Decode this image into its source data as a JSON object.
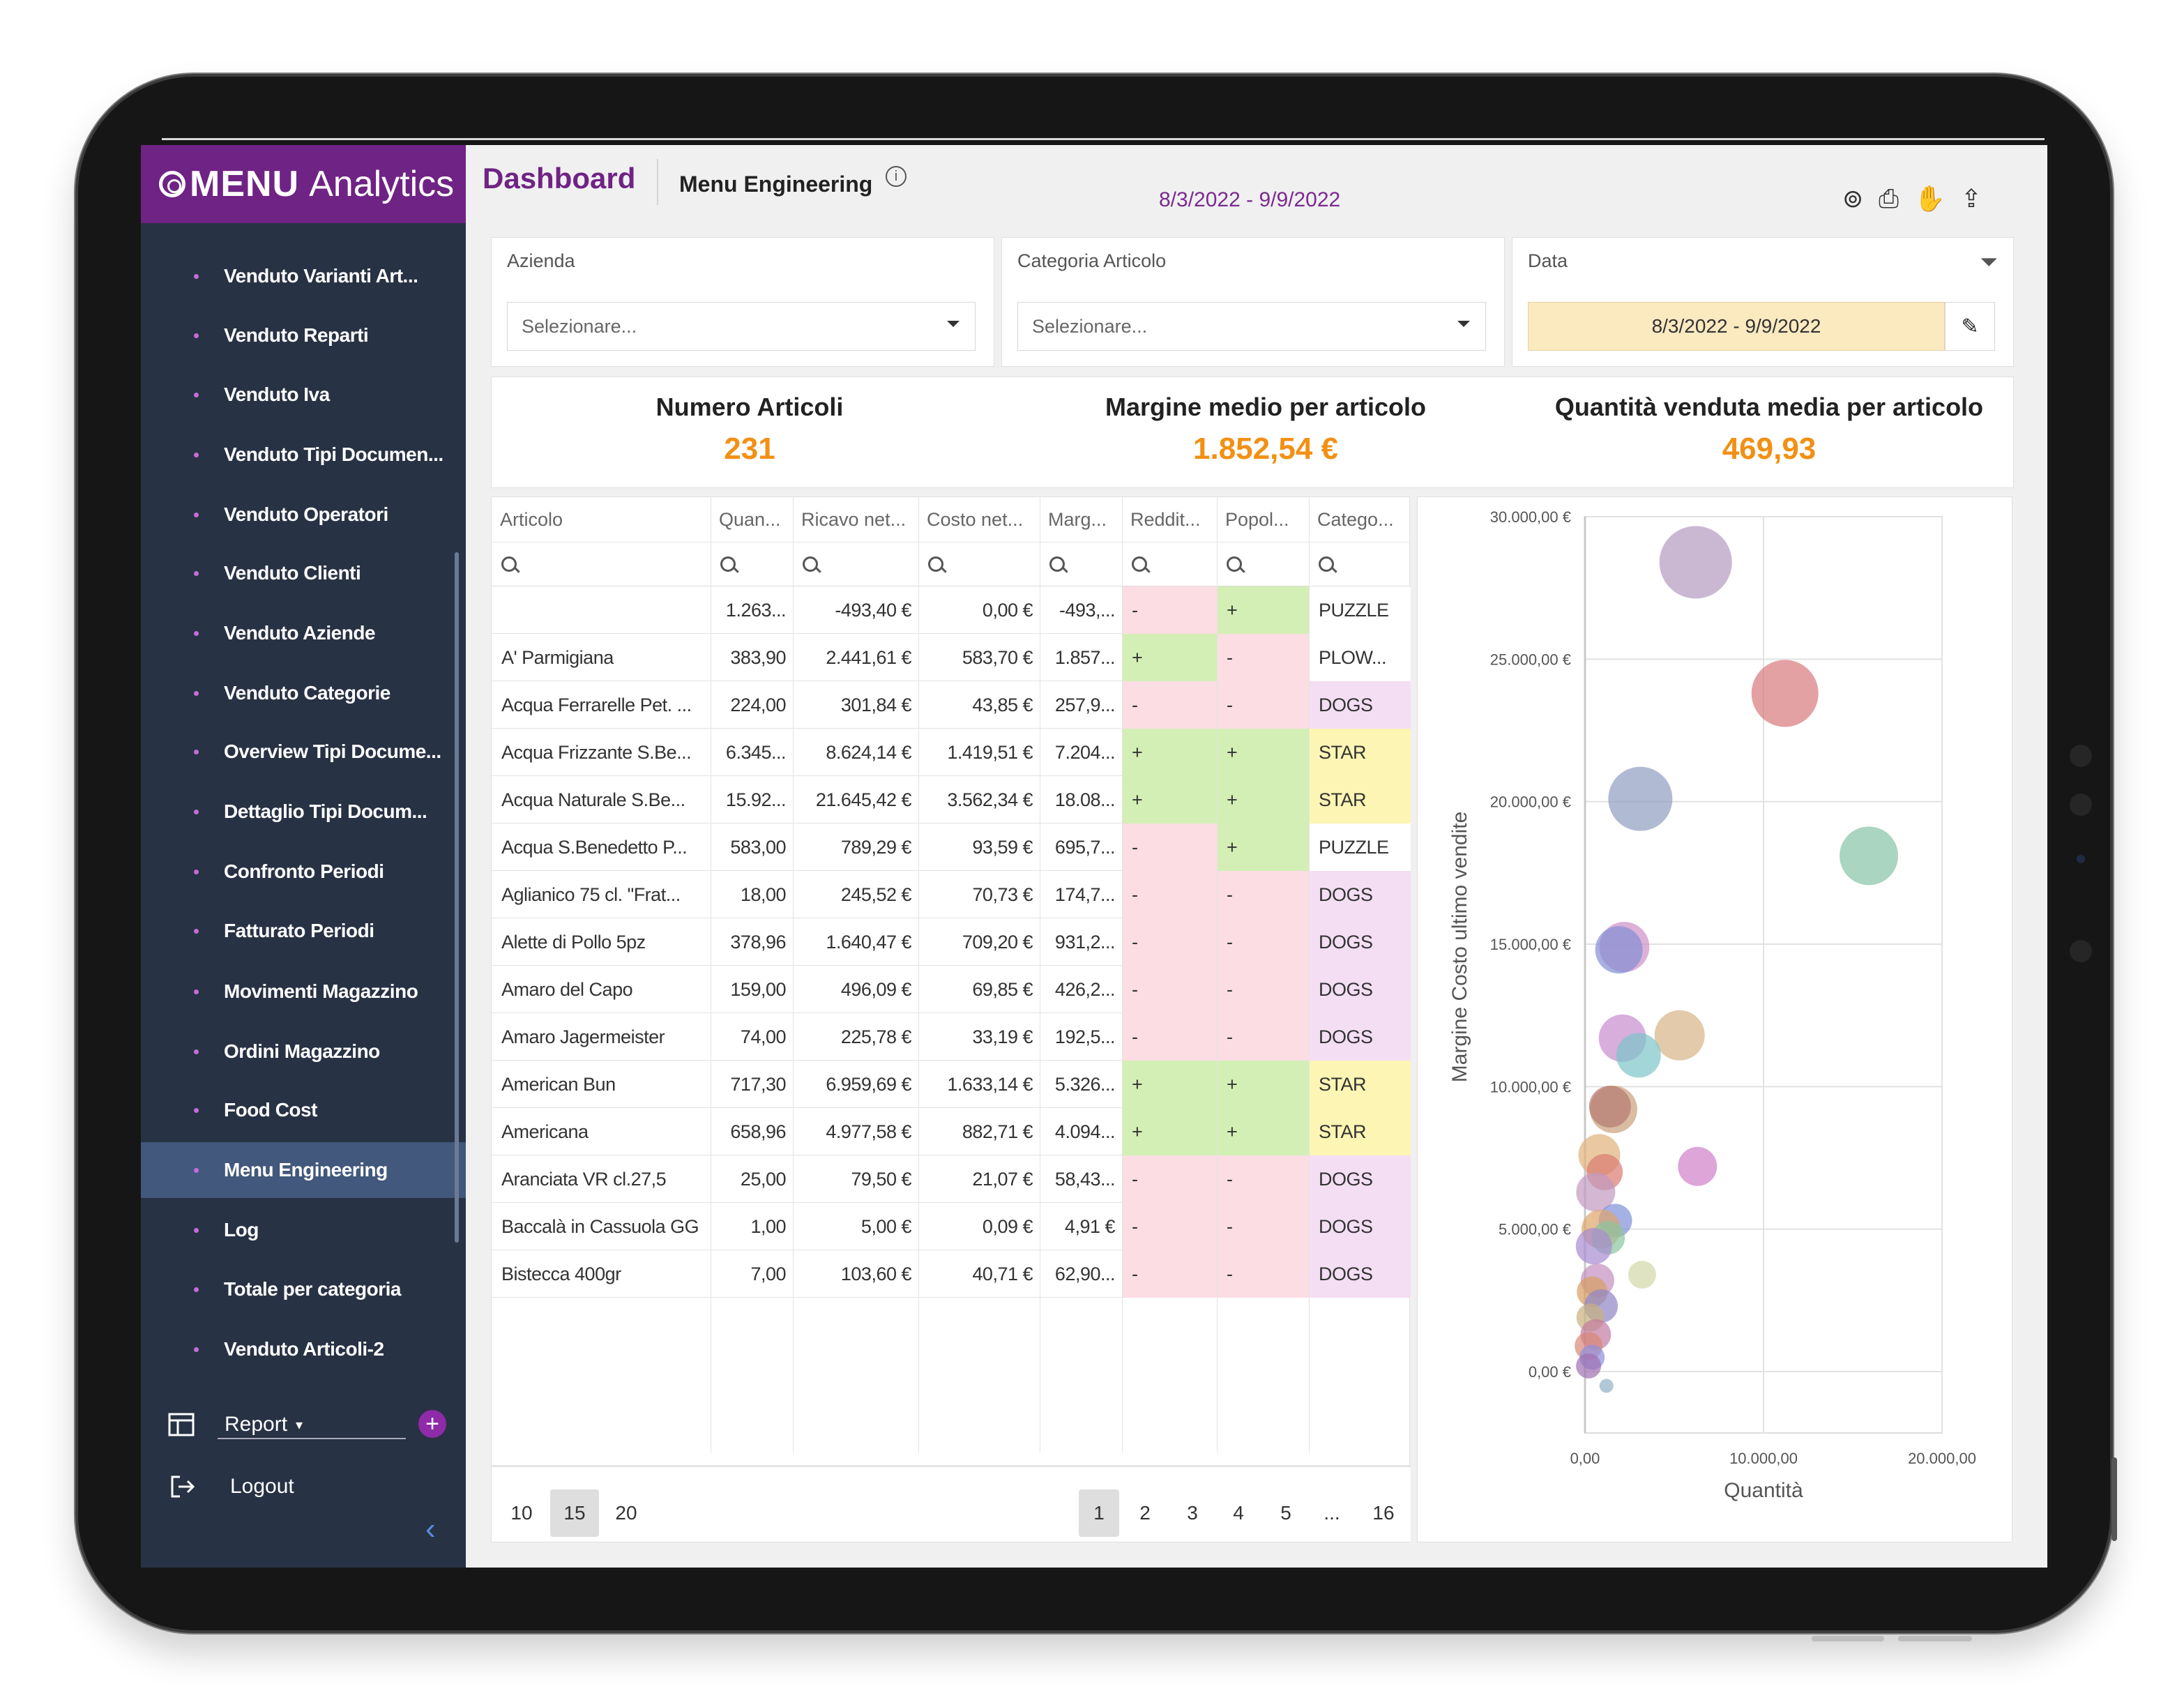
{
  "sidebar": {
    "brand_bold": "MENU",
    "brand_light": "Analytics",
    "items": [
      {
        "label": "Venduto Varianti Art...",
        "active": false
      },
      {
        "label": "Venduto Reparti",
        "active": false
      },
      {
        "label": "Venduto Iva",
        "active": false
      },
      {
        "label": "Venduto Tipi Documen...",
        "active": false
      },
      {
        "label": "Venduto Operatori",
        "active": false
      },
      {
        "label": "Venduto Clienti",
        "active": false
      },
      {
        "label": "Venduto Aziende",
        "active": false
      },
      {
        "label": "Venduto Categorie",
        "active": false
      },
      {
        "label": "Overview Tipi Docume...",
        "active": false
      },
      {
        "label": "Dettaglio Tipi Docum...",
        "active": false
      },
      {
        "label": "Confronto Periodi",
        "active": false
      },
      {
        "label": "Fatturato Periodi",
        "active": false
      },
      {
        "label": "Movimenti Magazzino",
        "active": false
      },
      {
        "label": "Ordini Magazzino",
        "active": false
      },
      {
        "label": "Food Cost",
        "active": false
      },
      {
        "label": "Menu Engineering",
        "active": true
      },
      {
        "label": "Log",
        "active": false
      },
      {
        "label": "Totale per categoria",
        "active": false
      },
      {
        "label": "Venduto Articoli-2",
        "active": false
      }
    ],
    "report_label": "Report",
    "logout_label": "Logout"
  },
  "header": {
    "dashboard": "Dashboard",
    "page": "Menu Engineering",
    "period": "8/3/2022 - 9/9/2022"
  },
  "filters": {
    "azienda_label": "Azienda",
    "azienda_placeholder": "Selezionare...",
    "categoria_label": "Categoria Articolo",
    "categoria_placeholder": "Selezionare...",
    "data_label": "Data",
    "data_value": "8/3/2022 - 9/9/2022"
  },
  "kpis": [
    {
      "title": "Numero Articoli",
      "value": "231"
    },
    {
      "title": "Margine medio per articolo",
      "value": "1.852,54 €"
    },
    {
      "title": "Quantità venduta media per articolo",
      "value": "469,93"
    }
  ],
  "colors": {
    "brand": "#6f2384",
    "accent": "#f29014",
    "red_cell": "#fbdde3",
    "green_cell": "#d3efb5",
    "puzzle": "#ffffff",
    "plow": "#ffffff",
    "dogs": "#f4def4",
    "star": "#fdf5b3"
  },
  "table": {
    "columns": [
      "Articolo",
      "Quan...",
      "Ricavo net...",
      "Costo net...",
      "Marg...",
      "Reddit...",
      "Popol...",
      "Catego..."
    ],
    "rows": [
      {
        "articolo": "",
        "quan": "1.263...",
        "ricavo": "-493,40 €",
        "costo": "0,00 €",
        "marg": "-493,...",
        "reddit": "-",
        "popol": "+",
        "categoria": "PUZZLE"
      },
      {
        "articolo": "A' Parmigiana",
        "quan": "383,90",
        "ricavo": "2.441,61 €",
        "costo": "583,70 €",
        "marg": "1.857...",
        "reddit": "+",
        "popol": "-",
        "categoria": "PLOW..."
      },
      {
        "articolo": "Acqua Ferrarelle Pet. ...",
        "quan": "224,00",
        "ricavo": "301,84 €",
        "costo": "43,85 €",
        "marg": "257,9...",
        "reddit": "-",
        "popol": "-",
        "categoria": "DOGS"
      },
      {
        "articolo": "Acqua Frizzante S.Be...",
        "quan": "6.345...",
        "ricavo": "8.624,14 €",
        "costo": "1.419,51 €",
        "marg": "7.204...",
        "reddit": "+",
        "popol": "+",
        "categoria": "STAR"
      },
      {
        "articolo": "Acqua Naturale S.Be...",
        "quan": "15.92...",
        "ricavo": "21.645,42 €",
        "costo": "3.562,34 €",
        "marg": "18.08...",
        "reddit": "+",
        "popol": "+",
        "categoria": "STAR"
      },
      {
        "articolo": "Acqua S.Benedetto P...",
        "quan": "583,00",
        "ricavo": "789,29 €",
        "costo": "93,59 €",
        "marg": "695,7...",
        "reddit": "-",
        "popol": "+",
        "categoria": "PUZZLE"
      },
      {
        "articolo": "Aglianico 75 cl. \"Frat...",
        "quan": "18,00",
        "ricavo": "245,52 €",
        "costo": "70,73 €",
        "marg": "174,7...",
        "reddit": "-",
        "popol": "-",
        "categoria": "DOGS"
      },
      {
        "articolo": "Alette di Pollo 5pz",
        "quan": "378,96",
        "ricavo": "1.640,47 €",
        "costo": "709,20 €",
        "marg": "931,2...",
        "reddit": "-",
        "popol": "-",
        "categoria": "DOGS"
      },
      {
        "articolo": "Amaro del Capo",
        "quan": "159,00",
        "ricavo": "496,09 €",
        "costo": "69,85 €",
        "marg": "426,2...",
        "reddit": "-",
        "popol": "-",
        "categoria": "DOGS"
      },
      {
        "articolo": "Amaro Jagermeister",
        "quan": "74,00",
        "ricavo": "225,78 €",
        "costo": "33,19 €",
        "marg": "192,5...",
        "reddit": "-",
        "popol": "-",
        "categoria": "DOGS"
      },
      {
        "articolo": "American Bun",
        "quan": "717,30",
        "ricavo": "6.959,69 €",
        "costo": "1.633,14 €",
        "marg": "5.326...",
        "reddit": "+",
        "popol": "+",
        "categoria": "STAR"
      },
      {
        "articolo": "Americana",
        "quan": "658,96",
        "ricavo": "4.977,58 €",
        "costo": "882,71 €",
        "marg": "4.094...",
        "reddit": "+",
        "popol": "+",
        "categoria": "STAR"
      },
      {
        "articolo": "Aranciata VR cl.27,5",
        "quan": "25,00",
        "ricavo": "79,50 €",
        "costo": "21,07 €",
        "marg": "58,43...",
        "reddit": "-",
        "popol": "-",
        "categoria": "DOGS"
      },
      {
        "articolo": "Baccalà in Cassuola GG",
        "quan": "1,00",
        "ricavo": "5,00 €",
        "costo": "0,09 €",
        "marg": "4,91 €",
        "reddit": "-",
        "popol": "-",
        "categoria": "DOGS"
      },
      {
        "articolo": "Bistecca 400gr",
        "quan": "7,00",
        "ricavo": "103,60 €",
        "costo": "40,71 €",
        "marg": "62,90...",
        "reddit": "-",
        "popol": "-",
        "categoria": "DOGS"
      }
    ]
  },
  "pager": {
    "sizes": [
      "10",
      "15",
      "20"
    ],
    "selected_size": "15",
    "pages": [
      "1",
      "2",
      "3",
      "4",
      "5",
      "...",
      "16"
    ],
    "current_page": "1"
  },
  "chart_data": {
    "type": "scatter",
    "title": "",
    "xlabel": "Quantità",
    "ylabel": "Margine Costo ultimo vendite",
    "xlim": [
      0,
      20000
    ],
    "ylim": [
      0,
      30000
    ],
    "x_ticks": [
      "0,00",
      "10.000,00",
      "20.000,00"
    ],
    "x_tick_values": [
      0,
      10000,
      20000
    ],
    "y_ticks": [
      "0,00 €",
      "5.000,00 €",
      "10.000,00 €",
      "15.000,00 €",
      "20.000,00 €",
      "25.000,00 €",
      "30.000,00 €"
    ],
    "y_tick_values": [
      0,
      5000,
      10000,
      15000,
      20000,
      25000,
      30000
    ],
    "grid": true,
    "points": [
      {
        "x": 6200,
        "y": 28400,
        "r": 26,
        "color": "#b49ac0"
      },
      {
        "x": 11200,
        "y": 23800,
        "r": 24,
        "color": "#d9797c"
      },
      {
        "x": 3100,
        "y": 20100,
        "r": 23,
        "color": "#8e9ec0"
      },
      {
        "x": 15900,
        "y": 18100,
        "r": 21,
        "color": "#86c3a6"
      },
      {
        "x": 2200,
        "y": 14900,
        "r": 18,
        "color": "#cf8ec8"
      },
      {
        "x": 1900,
        "y": 14800,
        "r": 17,
        "color": "#8390d4"
      },
      {
        "x": 5300,
        "y": 11800,
        "r": 18,
        "color": "#d6b487"
      },
      {
        "x": 2100,
        "y": 11700,
        "r": 17,
        "color": "#c88ccf"
      },
      {
        "x": 3000,
        "y": 11100,
        "r": 16,
        "color": "#7cc4c8"
      },
      {
        "x": 1600,
        "y": 9200,
        "r": 17,
        "color": "#caa07a"
      },
      {
        "x": 1400,
        "y": 9300,
        "r": 15,
        "color": "#b57b72"
      },
      {
        "x": 6300,
        "y": 7200,
        "r": 14,
        "color": "#cf7fc8"
      },
      {
        "x": 800,
        "y": 7600,
        "r": 15,
        "color": "#e0b07a"
      },
      {
        "x": 1100,
        "y": 7000,
        "r": 13,
        "color": "#d87a70"
      },
      {
        "x": 600,
        "y": 6300,
        "r": 14,
        "color": "#c29ac0"
      },
      {
        "x": 1700,
        "y": 5300,
        "r": 12,
        "color": "#7f8fd8"
      },
      {
        "x": 900,
        "y": 5000,
        "r": 14,
        "color": "#e0a56a"
      },
      {
        "x": 1300,
        "y": 4700,
        "r": 12,
        "color": "#8ac4a0"
      },
      {
        "x": 500,
        "y": 4400,
        "r": 13,
        "color": "#a68ad0"
      },
      {
        "x": 3200,
        "y": 3400,
        "r": 10,
        "color": "#d3d7a8"
      },
      {
        "x": 700,
        "y": 3200,
        "r": 12,
        "color": "#c38fc0"
      },
      {
        "x": 400,
        "y": 2800,
        "r": 11,
        "color": "#d6a060"
      },
      {
        "x": 900,
        "y": 2300,
        "r": 12,
        "color": "#8f85c8"
      },
      {
        "x": 300,
        "y": 1900,
        "r": 10,
        "color": "#c8b07e"
      },
      {
        "x": 600,
        "y": 1300,
        "r": 11,
        "color": "#c27aa0"
      },
      {
        "x": 200,
        "y": 900,
        "r": 10,
        "color": "#d88878"
      },
      {
        "x": 400,
        "y": 500,
        "r": 9,
        "color": "#8e8ee0"
      },
      {
        "x": 200,
        "y": 200,
        "r": 9,
        "color": "#a070b0"
      },
      {
        "x": 1200,
        "y": -500,
        "r": 5,
        "color": "#8fb0c8"
      }
    ]
  }
}
